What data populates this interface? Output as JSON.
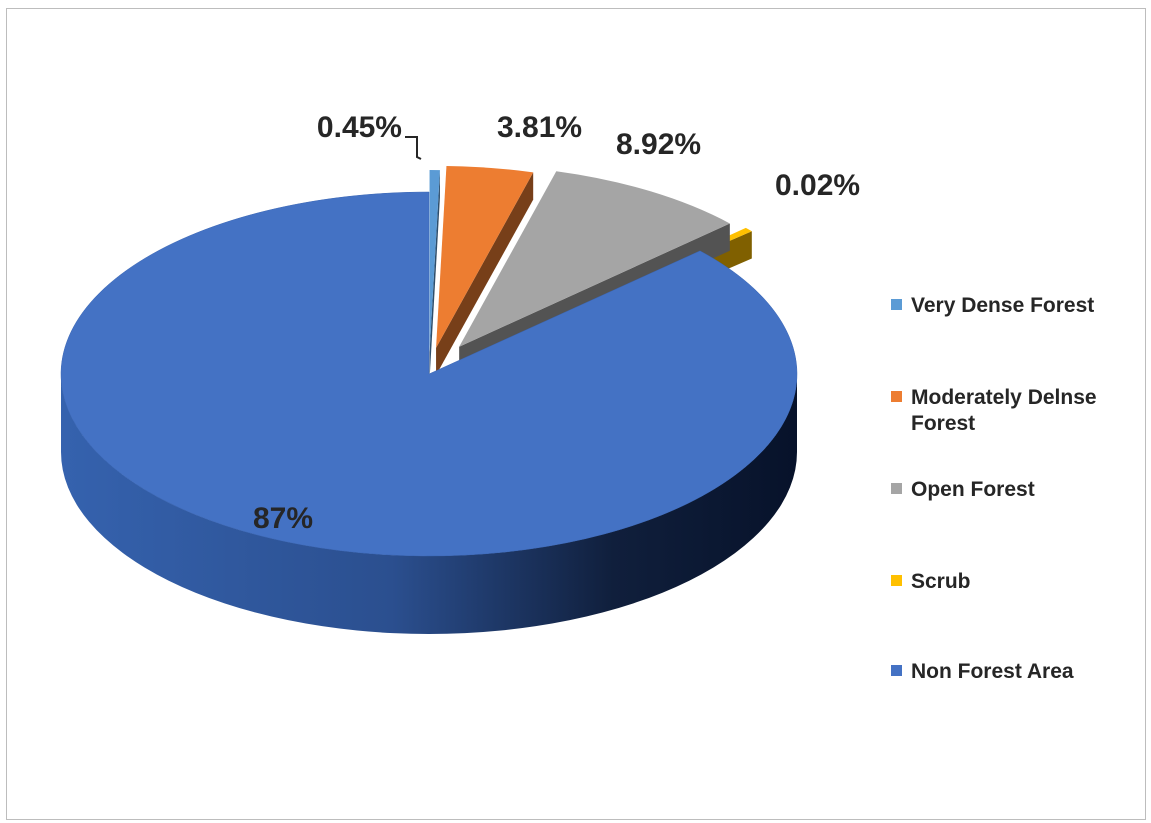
{
  "chart_data": {
    "type": "pie",
    "title": "",
    "three_d": true,
    "exploded": true,
    "legend_position": "right",
    "slices": [
      {
        "name": "Very Dense Forest",
        "value": 0.45,
        "label": "0.45%",
        "color": "#5B9BD5"
      },
      {
        "name": "Moderately Delnse Forest",
        "value": 3.81,
        "label": "3.81%",
        "color": "#ED7D31"
      },
      {
        "name": "Open Forest",
        "value": 8.92,
        "label": "8.92%",
        "color": "#A5A5A5"
      },
      {
        "name": "Scrub",
        "value": 0.02,
        "label": "0.02%",
        "color": "#FFC000"
      },
      {
        "name": "Non Forest Area",
        "value": 87,
        "label": "87%",
        "color": "#4472C4"
      }
    ]
  }
}
